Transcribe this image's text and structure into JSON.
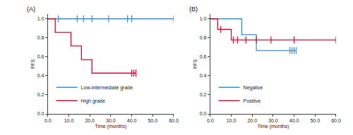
{
  "chart_data": [
    {
      "type": "line",
      "title": "(A)",
      "xlabel": "Time (months)",
      "ylabel": "PFS",
      "xlim": [
        0,
        60
      ],
      "xticks": [
        {
          "value": 0,
          "label": "0.0"
        },
        {
          "value": 10,
          "label": "10.0"
        },
        {
          "value": 20,
          "label": "20.0"
        },
        {
          "value": 30,
          "label": "30.0"
        },
        {
          "value": 40,
          "label": "40.0"
        },
        {
          "value": 50,
          "label": "50.0"
        },
        {
          "value": 60,
          "label": "60.0"
        }
      ],
      "ylim": [
        0,
        1.05
      ],
      "yticks": [
        {
          "value": 0,
          "label": "0.0"
        },
        {
          "value": 0.2,
          "label": "0.2"
        },
        {
          "value": 0.4,
          "label": "0.4"
        },
        {
          "value": 0.6,
          "label": "0.6"
        },
        {
          "value": 0.8,
          "label": "0.8"
        },
        {
          "value": 1,
          "label": "1.0"
        }
      ],
      "grid": false,
      "legend": "lower left",
      "line_style": "step",
      "marker": "tick",
      "series": [
        {
          "name": "Low-intermediate grade",
          "color": "#3a8fd9",
          "x": [
            0,
            60
          ],
          "values": [
            1,
            1
          ],
          "censor_x": [
            5,
            14,
            17,
            21,
            29,
            38,
            40,
            60
          ],
          "censor_values": [
            1,
            1,
            1,
            1,
            1,
            1,
            1,
            1
          ]
        },
        {
          "name": "High grade",
          "color": "#c8102e",
          "x": [
            0,
            3.5,
            11,
            16,
            21,
            42
          ],
          "values": [
            1,
            0.857,
            0.714,
            0.571,
            0.429,
            0.429
          ],
          "censor_x": [
            40,
            41,
            42
          ],
          "censor_values": [
            0.429,
            0.429,
            0.429
          ]
        }
      ]
    },
    {
      "type": "line",
      "title": "(B)",
      "xlabel": "Time (months)",
      "ylabel": "PFS",
      "xlim": [
        0,
        60
      ],
      "xticks": [
        {
          "value": 0,
          "label": "0.0"
        },
        {
          "value": 10,
          "label": "10.0"
        },
        {
          "value": 20,
          "label": "20.0"
        },
        {
          "value": 30,
          "label": "30.0"
        },
        {
          "value": 40,
          "label": "40.0"
        },
        {
          "value": 50,
          "label": "50.0"
        },
        {
          "value": 60,
          "label": "60.0"
        }
      ],
      "ylim": [
        0,
        1.05
      ],
      "yticks": [
        {
          "value": 0,
          "label": "0.0"
        },
        {
          "value": 0.2,
          "label": "0.2"
        },
        {
          "value": 0.4,
          "label": "0.4"
        },
        {
          "value": 0.6,
          "label": "0.6"
        },
        {
          "value": 0.8,
          "label": "0.8"
        },
        {
          "value": 1,
          "label": "1.0"
        }
      ],
      "grid": false,
      "legend": "lower left",
      "line_style": "step",
      "marker": "tick",
      "series": [
        {
          "name": "Negative",
          "color": "#3a8fd9",
          "x": [
            0,
            15,
            22,
            41
          ],
          "values": [
            1,
            0.833,
            0.667,
            0.667
          ],
          "censor_x": [
            38,
            39,
            40,
            41
          ],
          "censor_values": [
            0.667,
            0.667,
            0.667,
            0.667
          ]
        },
        {
          "name": "Positive",
          "color": "#c8102e",
          "x": [
            0,
            3.5,
            10,
            60
          ],
          "values": [
            1,
            0.889,
            0.778,
            0.778
          ],
          "censor_x": [
            5,
            11,
            13,
            17,
            22,
            29,
            40,
            60
          ],
          "censor_values": [
            0.889,
            0.778,
            0.778,
            0.778,
            0.778,
            0.778,
            0.778,
            0.778
          ]
        }
      ]
    }
  ]
}
